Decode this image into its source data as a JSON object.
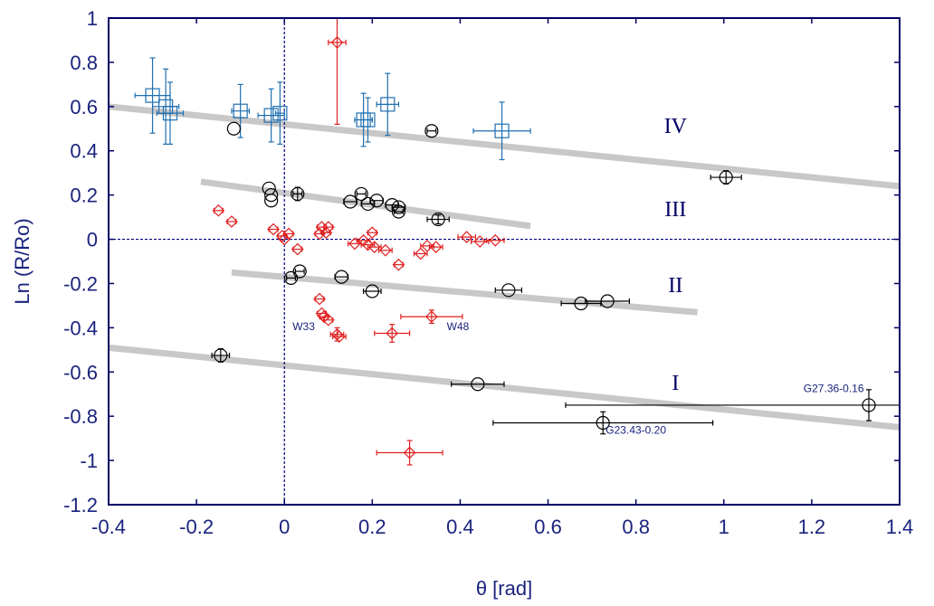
{
  "chart_data": {
    "type": "scatter",
    "xlabel": "θ [rad]",
    "ylabel": "Ln (R/Ro)",
    "xlim": [
      -0.4,
      1.4
    ],
    "ylim": [
      -1.2,
      1.0
    ],
    "x_ticks": [
      "-0.4",
      "-0.2",
      "0",
      "0.2",
      "0.4",
      "0.6",
      "0.8",
      "1",
      "1.2",
      "1.4"
    ],
    "y_ticks": [
      "1",
      "0.8",
      "0.6",
      "0.4",
      "0.2",
      "0",
      "-0.2",
      "-0.4",
      "-0.6",
      "-0.8",
      "-1",
      "-1.2"
    ],
    "colors": {
      "axis": "#000066",
      "tick_text": "#1a237e",
      "blue_squares": "#1f6fb0",
      "black_circles": "#000000",
      "red_diamonds": "#e02020",
      "arm_lines": "#c8c8c8",
      "zero_lines": "#000080"
    },
    "arm_lines": [
      {
        "label": "IV",
        "x": [
          -0.4,
          1.4
        ],
        "y": [
          0.6,
          0.24
        ],
        "label_pos": [
          0.89,
          0.48
        ]
      },
      {
        "label": "III",
        "x": [
          -0.19,
          0.56
        ],
        "y": [
          0.26,
          0.06
        ],
        "label_pos": [
          0.89,
          0.105
        ]
      },
      {
        "label": "II",
        "x": [
          -0.12,
          0.94
        ],
        "y": [
          -0.15,
          -0.33
        ],
        "label_pos": [
          0.89,
          -0.24
        ]
      },
      {
        "label": "I",
        "x": [
          -0.4,
          1.4
        ],
        "y": [
          -0.49,
          -0.85
        ],
        "label_pos": [
          0.89,
          -0.68
        ]
      }
    ],
    "annotations": [
      {
        "text": "W33",
        "x": 0.044,
        "y": -0.41
      },
      {
        "text": "W48",
        "x": 0.395,
        "y": -0.41
      },
      {
        "text": "G27.36-0.16",
        "x": 1.25,
        "y": -0.69
      },
      {
        "text": "G23.43-0.20",
        "x": 0.8,
        "y": -0.88
      }
    ],
    "series": [
      {
        "marker": "square",
        "points": [
          {
            "x": -0.3,
            "y": 0.65,
            "xerr": 0.04,
            "yerr": 0.17
          },
          {
            "x": -0.27,
            "y": 0.6,
            "xerr": 0.03,
            "yerr": 0.17
          },
          {
            "x": -0.26,
            "y": 0.57,
            "xerr": 0.03,
            "yerr": 0.14
          },
          {
            "x": -0.1,
            "y": 0.58,
            "xerr": 0.02,
            "yerr": 0.12
          },
          {
            "x": -0.03,
            "y": 0.56,
            "xerr": 0.03,
            "yerr": 0.12
          },
          {
            "x": -0.01,
            "y": 0.57,
            "xerr": 0.01,
            "yerr": 0.14
          },
          {
            "x": 0.18,
            "y": 0.54,
            "xerr": 0.02,
            "yerr": 0.12
          },
          {
            "x": 0.19,
            "y": 0.54,
            "xerr": 0.01,
            "yerr": 0.1
          },
          {
            "x": 0.235,
            "y": 0.61,
            "xerr": 0.025,
            "yerr": 0.14
          },
          {
            "x": 0.495,
            "y": 0.49,
            "xerr": 0.065,
            "yerr": 0.13
          }
        ]
      },
      {
        "marker": "circle",
        "points": [
          {
            "x": -0.115,
            "y": 0.5,
            "xerr": 0.0,
            "yerr": 0.0
          },
          {
            "x": -0.035,
            "y": 0.23,
            "xerr": 0.0,
            "yerr": 0.0
          },
          {
            "x": -0.03,
            "y": 0.2,
            "xerr": 0.0,
            "yerr": 0.0
          },
          {
            "x": -0.03,
            "y": 0.175,
            "xerr": 0.0,
            "yerr": 0.0
          },
          {
            "x": 0.03,
            "y": 0.205,
            "xerr": 0.01,
            "yerr": 0.03
          },
          {
            "x": 0.15,
            "y": 0.17,
            "xerr": 0.015,
            "yerr": 0.0
          },
          {
            "x": 0.175,
            "y": 0.205,
            "xerr": 0.01,
            "yerr": 0.0
          },
          {
            "x": 0.19,
            "y": 0.16,
            "xerr": 0.015,
            "yerr": 0.0
          },
          {
            "x": 0.21,
            "y": 0.175,
            "xerr": 0.015,
            "yerr": 0.0
          },
          {
            "x": 0.245,
            "y": 0.155,
            "xerr": 0.015,
            "yerr": 0.0
          },
          {
            "x": 0.26,
            "y": 0.145,
            "xerr": 0.015,
            "yerr": 0.0
          },
          {
            "x": 0.26,
            "y": 0.125,
            "xerr": 0.01,
            "yerr": 0.0
          },
          {
            "x": 0.335,
            "y": 0.49,
            "xerr": 0.01,
            "yerr": 0.0
          },
          {
            "x": 0.35,
            "y": 0.09,
            "xerr": 0.025,
            "yerr": 0.02
          },
          {
            "x": 0.015,
            "y": -0.175,
            "xerr": 0.01,
            "yerr": 0.0
          },
          {
            "x": 0.035,
            "y": -0.145,
            "xerr": 0.01,
            "yerr": 0.0
          },
          {
            "x": 0.13,
            "y": -0.17,
            "xerr": 0.015,
            "yerr": 0.0
          },
          {
            "x": 0.2,
            "y": -0.235,
            "xerr": 0.02,
            "yerr": 0.0
          },
          {
            "x": 0.51,
            "y": -0.23,
            "xerr": 0.03,
            "yerr": 0.0
          },
          {
            "x": 0.675,
            "y": -0.29,
            "xerr": 0.045,
            "yerr": 0.0
          },
          {
            "x": 0.735,
            "y": -0.28,
            "xerr": 0.05,
            "yerr": 0.0
          },
          {
            "x": 1.005,
            "y": 0.28,
            "xerr": 0.035,
            "yerr": 0.03
          },
          {
            "x": -0.145,
            "y": -0.525,
            "xerr": 0.02,
            "yerr": 0.03
          },
          {
            "x": 0.44,
            "y": -0.655,
            "xerr": 0.06,
            "yerr": 0.0
          },
          {
            "x": 0.725,
            "y": -0.83,
            "xerr": 0.25,
            "yerr": 0.05
          },
          {
            "x": 1.33,
            "y": -0.75,
            "xerr": 0.69,
            "yerr": 0.07
          }
        ]
      },
      {
        "marker": "diamond",
        "points": [
          {
            "x": -0.15,
            "y": 0.13,
            "xerr": 0.01,
            "yerr": 0.0
          },
          {
            "x": -0.12,
            "y": 0.08,
            "xerr": 0.01,
            "yerr": 0.0
          },
          {
            "x": -0.025,
            "y": 0.045,
            "xerr": 0.01,
            "yerr": 0.0
          },
          {
            "x": -0.005,
            "y": 0.015,
            "xerr": 0.01,
            "yerr": 0.0
          },
          {
            "x": 0.0,
            "y": 0.0,
            "xerr": 0.0,
            "yerr": 0.0
          },
          {
            "x": 0.01,
            "y": 0.025,
            "xerr": 0.01,
            "yerr": 0.0
          },
          {
            "x": 0.03,
            "y": -0.045,
            "xerr": 0.01,
            "yerr": 0.0
          },
          {
            "x": 0.08,
            "y": 0.025,
            "xerr": 0.01,
            "yerr": 0.0
          },
          {
            "x": 0.085,
            "y": 0.055,
            "xerr": 0.01,
            "yerr": 0.0
          },
          {
            "x": 0.095,
            "y": 0.03,
            "xerr": 0.01,
            "yerr": 0.0
          },
          {
            "x": 0.1,
            "y": 0.055,
            "xerr": 0.01,
            "yerr": 0.0
          },
          {
            "x": 0.16,
            "y": -0.02,
            "xerr": 0.015,
            "yerr": 0.0
          },
          {
            "x": 0.18,
            "y": -0.005,
            "xerr": 0.015,
            "yerr": 0.0
          },
          {
            "x": 0.19,
            "y": -0.025,
            "xerr": 0.015,
            "yerr": 0.0
          },
          {
            "x": 0.2,
            "y": 0.03,
            "xerr": 0.01,
            "yerr": 0.0
          },
          {
            "x": 0.205,
            "y": -0.035,
            "xerr": 0.015,
            "yerr": 0.0
          },
          {
            "x": 0.23,
            "y": -0.05,
            "xerr": 0.015,
            "yerr": 0.0
          },
          {
            "x": 0.26,
            "y": -0.115,
            "xerr": 0.01,
            "yerr": 0.0
          },
          {
            "x": 0.31,
            "y": -0.065,
            "xerr": 0.015,
            "yerr": 0.0
          },
          {
            "x": 0.325,
            "y": -0.03,
            "xerr": 0.015,
            "yerr": 0.0
          },
          {
            "x": 0.345,
            "y": -0.035,
            "xerr": 0.015,
            "yerr": 0.0
          },
          {
            "x": 0.415,
            "y": 0.01,
            "xerr": 0.02,
            "yerr": 0.0
          },
          {
            "x": 0.445,
            "y": -0.01,
            "xerr": 0.02,
            "yerr": 0.0
          },
          {
            "x": 0.48,
            "y": -0.005,
            "xerr": 0.02,
            "yerr": 0.0
          },
          {
            "x": 0.08,
            "y": -0.27,
            "xerr": 0.01,
            "yerr": 0.0
          },
          {
            "x": 0.085,
            "y": -0.335,
            "xerr": 0.01,
            "yerr": 0.0
          },
          {
            "x": 0.09,
            "y": -0.35,
            "xerr": 0.01,
            "yerr": 0.0
          },
          {
            "x": 0.1,
            "y": -0.365,
            "xerr": 0.01,
            "yerr": 0.0
          },
          {
            "x": 0.12,
            "y": -0.43,
            "xerr": 0.015,
            "yerr": 0.03
          },
          {
            "x": 0.125,
            "y": -0.44,
            "xerr": 0.015,
            "yerr": 0.0
          },
          {
            "x": 0.245,
            "y": -0.425,
            "xerr": 0.04,
            "yerr": 0.04
          },
          {
            "x": 0.335,
            "y": -0.35,
            "xerr": 0.07,
            "yerr": 0.03
          },
          {
            "x": 0.12,
            "y": 0.89,
            "xerr": 0.02,
            "yerr": 0.37
          },
          {
            "x": 0.285,
            "y": -0.965,
            "xerr": 0.075,
            "yerr": 0.055
          }
        ]
      }
    ]
  }
}
